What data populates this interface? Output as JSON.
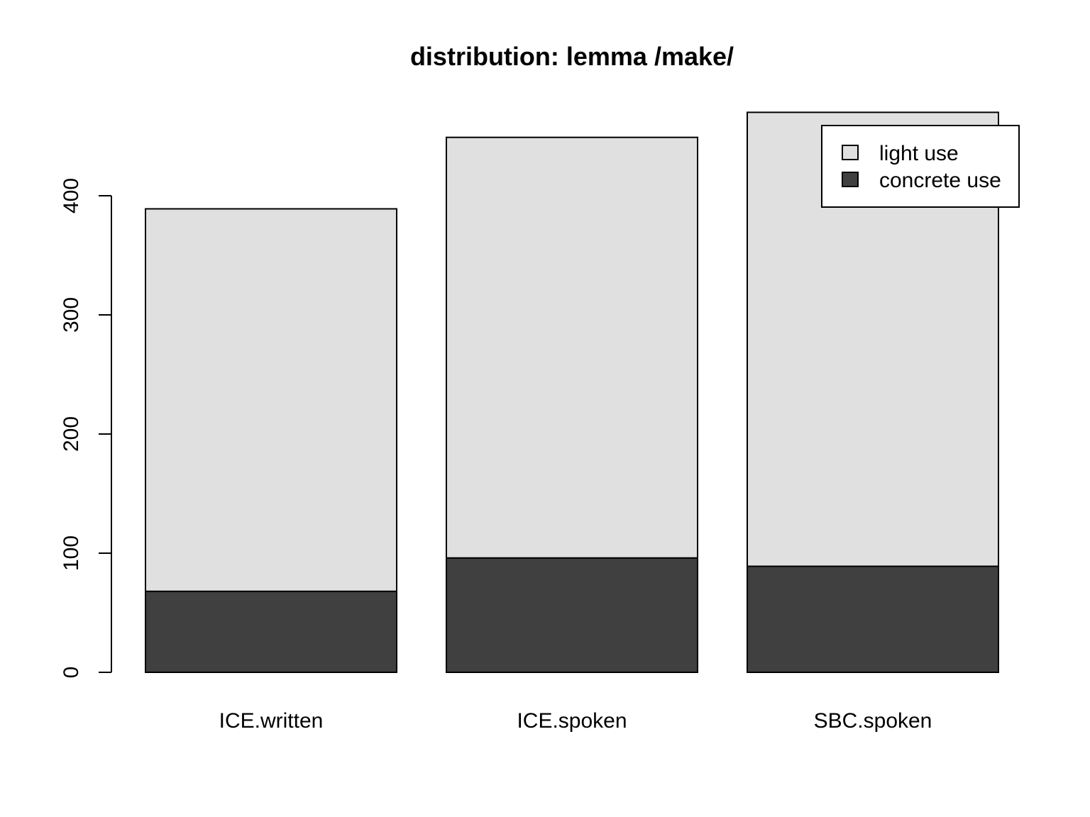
{
  "chart_data": {
    "type": "bar",
    "stacked": true,
    "title": "distribution: lemma /make/",
    "xlabel": "",
    "ylabel": "",
    "categories": [
      "ICE.written",
      "ICE.spoken",
      "SBC.spoken"
    ],
    "series": [
      {
        "name": "concrete use",
        "values": [
          68,
          96,
          89
        ],
        "color": "#404040"
      },
      {
        "name": "light use",
        "values": [
          321,
          353,
          381
        ],
        "color": "#e0e0e0"
      }
    ],
    "y_ticks": [
      0,
      100,
      200,
      300,
      400
    ],
    "ylim": [
      0,
      470
    ],
    "legend": {
      "position": "top-right",
      "entries": [
        {
          "label": "light use",
          "color": "#e0e0e0"
        },
        {
          "label": "concrete use",
          "color": "#404040"
        }
      ]
    },
    "grid": false
  }
}
